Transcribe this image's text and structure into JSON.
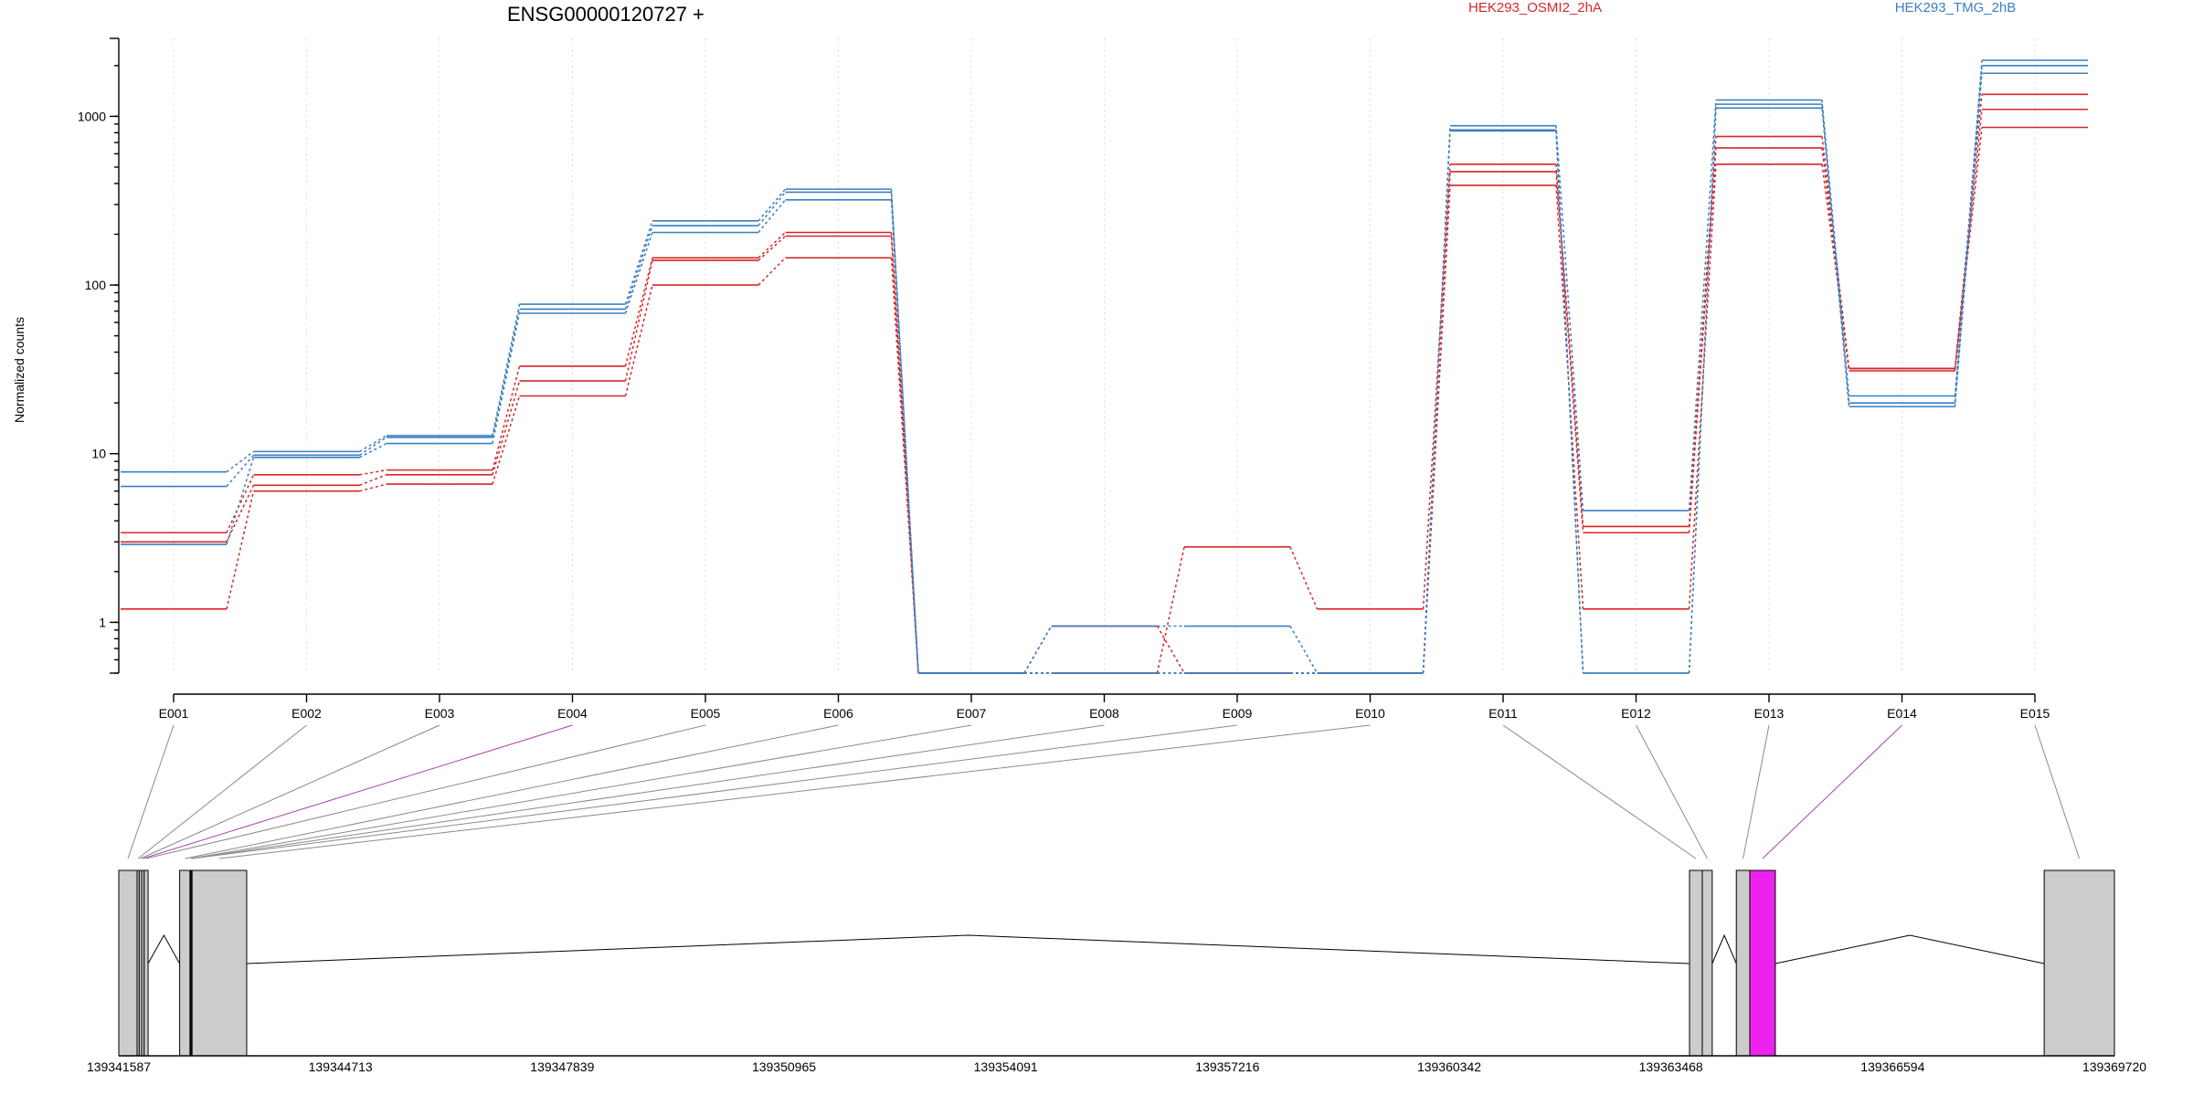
{
  "chart_data": {
    "type": "line",
    "title": "ENSG00000120727 +",
    "ylabel": "Normalized counts",
    "yscale": "log",
    "ylim": [
      0.5,
      2900
    ],
    "yticks": [
      1,
      10,
      100,
      1000
    ],
    "ytick_labels": [
      "1",
      "10",
      "100",
      "1000"
    ],
    "categories": [
      "E001",
      "E002",
      "E003",
      "E004",
      "E005",
      "E006",
      "E007",
      "E008",
      "E009",
      "E010",
      "E011",
      "E012",
      "E013",
      "E014",
      "E015"
    ],
    "legend": [
      {
        "name": "HEK293_OSMI2_2hA",
        "color": "#d62728"
      },
      {
        "name": "HEK293_TMG_2hB",
        "color": "#3b7fc0"
      }
    ],
    "series": [
      {
        "group": "HEK293_OSMI2_2hA",
        "color": "#d62728",
        "values": [
          3.4,
          7.5,
          8.0,
          33,
          145,
          205,
          0.5,
          0.5,
          2.8,
          1.2,
          520,
          3.7,
          760,
          32,
          1350
        ]
      },
      {
        "group": "HEK293_OSMI2_2hA",
        "color": "#d62728",
        "values": [
          3.0,
          6.5,
          7.5,
          27,
          140,
          195,
          0.5,
          0.5,
          0.5,
          0.5,
          470,
          3.4,
          650,
          31,
          1100
        ]
      },
      {
        "group": "HEK293_OSMI2_2hA",
        "color": "#d62728",
        "values": [
          1.2,
          6.0,
          6.6,
          22,
          100,
          145,
          0.5,
          0.95,
          0.5,
          0.5,
          390,
          1.2,
          520,
          32,
          860
        ]
      },
      {
        "group": "HEK293_TMG_2hB",
        "color": "#3b7fc0",
        "values": [
          7.8,
          10.3,
          12.8,
          77,
          240,
          370,
          0.5,
          0.5,
          0.5,
          0.5,
          880,
          4.6,
          1250,
          22,
          2150
        ]
      },
      {
        "group": "HEK293_TMG_2hB",
        "color": "#3b7fc0",
        "values": [
          6.4,
          9.8,
          12.5,
          72,
          225,
          355,
          0.5,
          0.95,
          0.95,
          0.5,
          830,
          0.5,
          1180,
          20,
          2000
        ]
      },
      {
        "group": "HEK293_TMG_2hB",
        "color": "#3b7fc0",
        "values": [
          2.9,
          9.5,
          11.5,
          68,
          205,
          320,
          0.5,
          0.5,
          0.5,
          0.5,
          820,
          0.5,
          1120,
          19,
          1800
        ]
      }
    ],
    "gene_model": {
      "coordinate_ticks": [
        "139341587",
        "139344713",
        "139347839",
        "139350965",
        "139354091",
        "139357216",
        "139360342",
        "139363468",
        "139366594",
        "139369720"
      ],
      "genomic_range": [
        139341587,
        139369720
      ],
      "exons": [
        {
          "label": "E001",
          "start": 139341587,
          "end": 139341845,
          "highlight": false
        },
        {
          "label": "E002",
          "start": 139341845,
          "end": 139341875,
          "highlight": false
        },
        {
          "label": "E003",
          "start": 139341875,
          "end": 139341910,
          "highlight": false
        },
        {
          "label": "E004",
          "start": 139341910,
          "end": 139341945,
          "highlight": false
        },
        {
          "label": "E005",
          "start": 139341945,
          "end": 139342000,
          "highlight": false
        },
        {
          "label": "E006",
          "start": 139342445,
          "end": 139342600,
          "highlight": false
        },
        {
          "label": "E007",
          "start": 139342590,
          "end": 139342610,
          "highlight": false
        },
        {
          "label": "E008",
          "start": 139342600,
          "end": 139342620,
          "highlight": false
        },
        {
          "label": "E009",
          "start": 139342610,
          "end": 139342630,
          "highlight": false
        },
        {
          "label": "E010",
          "start": 139342620,
          "end": 139343390,
          "highlight": false
        },
        {
          "label": "E011",
          "start": 139363730,
          "end": 139363910,
          "highlight": false
        },
        {
          "label": "E012",
          "start": 139363910,
          "end": 139364050,
          "highlight": false
        },
        {
          "label": "E013",
          "start": 139364390,
          "end": 139364580,
          "highlight": false
        },
        {
          "label": "E014",
          "start": 139364580,
          "end": 139364940,
          "highlight": true
        },
        {
          "label": "E015",
          "start": 139368730,
          "end": 139369720,
          "highlight": false
        }
      ],
      "introns": [
        [
          139342000,
          139342445
        ],
        [
          139343390,
          139363730
        ],
        [
          139364050,
          139364390
        ],
        [
          139364940,
          139368730
        ]
      ]
    }
  }
}
